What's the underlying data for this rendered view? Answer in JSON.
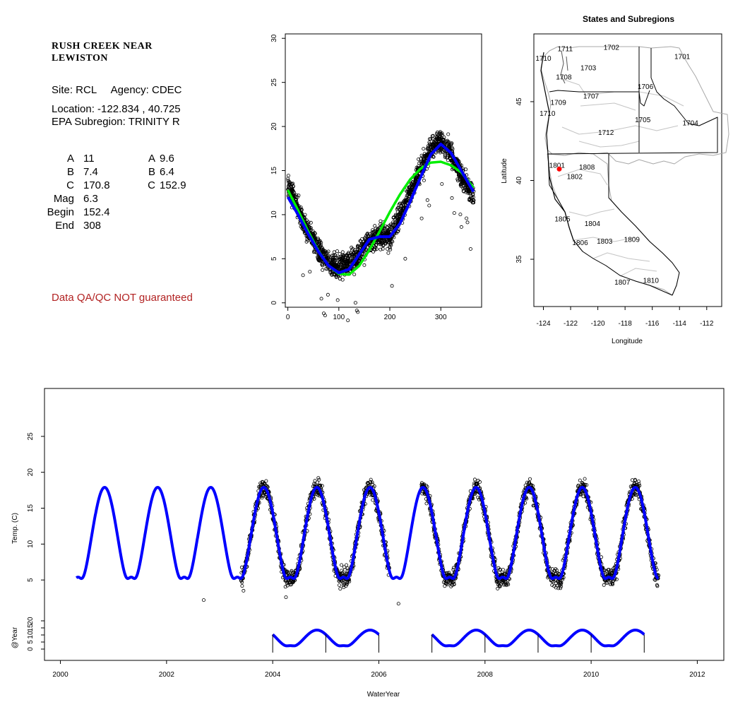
{
  "site": {
    "title": "RUSH CREEK NEAR\nLEWISTON",
    "site_line": "Site: RCL     Agency: CDEC",
    "location_line": "Location: -122.834 , 40.725",
    "subregion_line": "EPA Subregion: TRINITY R",
    "params_left": [
      {
        "label": "A",
        "value": "11"
      },
      {
        "label": "B",
        "value": "7.4"
      },
      {
        "label": "C",
        "value": "170.8"
      },
      {
        "label": "Mag",
        "value": "6.3"
      },
      {
        "label": "Begin",
        "value": "152.4"
      },
      {
        "label": "End",
        "value": "308"
      }
    ],
    "params_right": [
      {
        "label": "A",
        "value": "9.6"
      },
      {
        "label": "B",
        "value": "6.4"
      },
      {
        "label": "C",
        "value": "152.9"
      }
    ],
    "qa_note": "Data QA/QC NOT guaranteed"
  },
  "colors": {
    "fit_blue": "#0000ff",
    "fit_green": "#00ee00",
    "points": "#000000",
    "qa_red": "#b22222",
    "site_marker": "#ff0000",
    "boundary_gray": "#a8a8a8"
  },
  "chart_data": [
    {
      "type": "scatter",
      "panel": "seasonal",
      "title": "",
      "xlabel": "",
      "ylabel": "",
      "xlim": [
        -5,
        380
      ],
      "ylim": [
        -0.5,
        30.5
      ],
      "xticks": [
        0,
        100,
        200,
        300
      ],
      "yticks": [
        0,
        5,
        10,
        15,
        20,
        25,
        30
      ],
      "series": [
        {
          "kind": "points",
          "x": [
            0,
            20,
            40,
            60,
            80,
            100,
            120,
            140,
            160,
            180,
            200,
            220,
            240,
            260,
            280,
            300,
            320,
            340,
            360
          ],
          "y": [
            13.5,
            10.5,
            8,
            6,
            4.5,
            4,
            4.5,
            5.5,
            7,
            7.5,
            7.5,
            10,
            12.5,
            15,
            17.5,
            18.5,
            17,
            14.5,
            12.5
          ]
        },
        {
          "kind": "blue fit",
          "x": [
            0,
            20,
            40,
            60,
            80,
            100,
            120,
            140,
            160,
            180,
            200,
            220,
            240,
            260,
            280,
            300,
            320,
            340,
            365
          ],
          "y": [
            12,
            10,
            7.8,
            5.8,
            4.2,
            3.4,
            3.8,
            5.5,
            7.2,
            7.5,
            7.5,
            9,
            11.5,
            14.2,
            16.8,
            18,
            17,
            15,
            12.5
          ]
        },
        {
          "kind": "green fit",
          "x": [
            0,
            20,
            40,
            60,
            80,
            100,
            120,
            140,
            160,
            180,
            200,
            220,
            240,
            260,
            280,
            300,
            320,
            340,
            365
          ],
          "y": [
            12.8,
            10.5,
            8.1,
            5.9,
            4.2,
            3.3,
            3.2,
            4.2,
            6,
            8.1,
            10.3,
            12.3,
            14,
            15.2,
            15.9,
            16,
            15.6,
            14.8,
            13
          ]
        }
      ]
    },
    {
      "type": "line",
      "panel": "timeseries",
      "title": "",
      "xlabel": "WaterYear",
      "ylabel": "Temp. (C)",
      "xlim": [
        1999.7,
        2012.5
      ],
      "ylim": [
        0,
        30
      ],
      "xticks": [
        2000,
        2002,
        2004,
        2006,
        2008,
        2010,
        2012
      ],
      "yticks": [
        5,
        10,
        15,
        20,
        25
      ],
      "model": {
        "start": 2000.3,
        "end": 2011.27,
        "peak_phase": 0.833,
        "low": 3.8,
        "high": 17.9
      },
      "observations": {
        "periods": [
          [
            2003.4,
            2006.2
          ],
          [
            2006.8,
            2011.27
          ]
        ]
      },
      "outliers": [
        {
          "x": 2002.7,
          "y": 2.2
        },
        {
          "x": 2004.25,
          "y": 2.6
        },
        {
          "x": 2006.37,
          "y": 1.7
        },
        {
          "x": 2003.45,
          "y": 3.5
        }
      ]
    },
    {
      "type": "line",
      "panel": "yearly",
      "title": "",
      "xlabel": "",
      "ylabel": "@Year",
      "ylim": [
        -3,
        25
      ],
      "yticks": [
        0,
        5,
        10,
        15,
        20
      ],
      "segments": [
        [
          2004.0,
          2006.0
        ],
        [
          2007.0,
          2011.0
        ]
      ],
      "year_marks": [
        2004.0,
        2005.0,
        2006.0,
        2007.0,
        2008.0,
        2009.0,
        2010.0,
        2011.0
      ]
    },
    {
      "type": "map",
      "panel": "map",
      "title": "States and Subregions",
      "xlabel": "Longitude",
      "ylabel": "Latitude",
      "xlim": [
        -124.7,
        -110.9
      ],
      "ylim": [
        32,
        49.3
      ],
      "xticks": [
        -124,
        -122,
        -120,
        -118,
        -116,
        -114,
        -112
      ],
      "yticks": [
        35,
        40,
        45
      ],
      "site": {
        "lon": -122.834,
        "lat": 40.725
      },
      "subregions": [
        {
          "label": "1711",
          "lon": -122.4,
          "lat": 48.2
        },
        {
          "label": "1710",
          "lon": -124.0,
          "lat": 47.6
        },
        {
          "label": "1702",
          "lon": -119.0,
          "lat": 48.3
        },
        {
          "label": "1701",
          "lon": -113.8,
          "lat": 47.7
        },
        {
          "label": "1703",
          "lon": -120.7,
          "lat": 47.0
        },
        {
          "label": "1708",
          "lon": -122.5,
          "lat": 46.4
        },
        {
          "label": "1706",
          "lon": -116.5,
          "lat": 45.8
        },
        {
          "label": "1707",
          "lon": -120.5,
          "lat": 45.2
        },
        {
          "label": "1709",
          "lon": -122.9,
          "lat": 44.8
        },
        {
          "label": "1710",
          "lon": -123.7,
          "lat": 44.1
        },
        {
          "label": "1705",
          "lon": -116.7,
          "lat": 43.7
        },
        {
          "label": "1704",
          "lon": -113.2,
          "lat": 43.5
        },
        {
          "label": "1712",
          "lon": -119.4,
          "lat": 42.9
        },
        {
          "label": "1801",
          "lon": -123.0,
          "lat": 40.8
        },
        {
          "label": "1808",
          "lon": -120.8,
          "lat": 40.7
        },
        {
          "label": "1802",
          "lon": -121.7,
          "lat": 40.1
        },
        {
          "label": "1805",
          "lon": -122.6,
          "lat": 37.4
        },
        {
          "label": "1804",
          "lon": -120.4,
          "lat": 37.1
        },
        {
          "label": "1806",
          "lon": -121.3,
          "lat": 35.9
        },
        {
          "label": "1803",
          "lon": -119.5,
          "lat": 36.0
        },
        {
          "label": "1809",
          "lon": -117.5,
          "lat": 36.1
        },
        {
          "label": "1807",
          "lon": -118.2,
          "lat": 33.4
        },
        {
          "label": "1810",
          "lon": -116.1,
          "lat": 33.5
        }
      ]
    }
  ]
}
